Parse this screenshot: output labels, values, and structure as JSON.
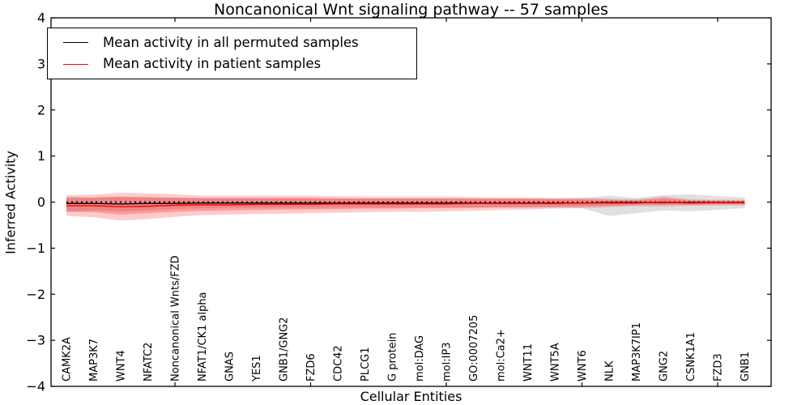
{
  "chart_data": {
    "type": "line",
    "title": "Noncanonical Wnt signaling pathway -- 57 samples",
    "xlabel": "Cellular Entities",
    "ylabel": "Inferred Activity",
    "ylim": [
      -4,
      4
    ],
    "yticks": [
      4,
      3,
      2,
      1,
      0,
      -1,
      -2,
      -3,
      -4
    ],
    "x_tick_mark_indices": [
      4,
      9,
      14,
      19,
      24
    ],
    "grid": false,
    "legend_position": "upper left",
    "zero_reference_line": {
      "y": 0,
      "style": "dotted",
      "color": "#000000"
    },
    "categories": [
      "CAMK2A",
      "MAP3K7",
      "WNT4",
      "NFATC2",
      "Noncanonical Wnts/FZD",
      "NFAT1/CK1 alpha",
      "GNAS",
      "YES1",
      "GNB1/GNG2",
      "FZD6",
      "CDC42",
      "PLCG1",
      "G protein",
      "mol:DAG",
      "mol:IP3",
      "GO:0007205",
      "mol:Ca2+",
      "WNT11",
      "WNT5A",
      "WNT6",
      "NLK",
      "MAP3K7IP1",
      "GNG2",
      "CSNK1A1",
      "FZD3",
      "GNB1"
    ],
    "series": [
      {
        "name": "Mean activity in all permuted samples",
        "color": "#000000",
        "style": "solid",
        "values": [
          -0.03,
          -0.03,
          -0.04,
          -0.03,
          -0.03,
          -0.02,
          -0.02,
          -0.02,
          -0.02,
          -0.02,
          -0.02,
          -0.02,
          -0.02,
          -0.02,
          -0.02,
          -0.02,
          -0.02,
          -0.02,
          -0.02,
          -0.02,
          -0.01,
          -0.01,
          -0.01,
          -0.01,
          -0.01,
          -0.01
        ]
      },
      {
        "name": "Mean activity in patient samples",
        "color": "#ff0000",
        "style": "solid",
        "values": [
          -0.08,
          -0.08,
          -0.1,
          -0.09,
          -0.07,
          -0.06,
          -0.06,
          -0.05,
          -0.05,
          -0.05,
          -0.04,
          -0.04,
          -0.04,
          -0.04,
          -0.04,
          -0.03,
          -0.03,
          -0.03,
          -0.03,
          -0.02,
          -0.02,
          -0.02,
          0.0,
          -0.02,
          -0.01,
          -0.01
        ]
      }
    ],
    "bands": [
      {
        "name": "permuted-samples-range",
        "color": "#999999",
        "opacity": 0.3,
        "upper": [
          0.12,
          0.1,
          0.11,
          0.1,
          0.09,
          0.08,
          0.08,
          0.08,
          0.08,
          0.08,
          0.08,
          0.08,
          0.08,
          0.08,
          0.08,
          0.08,
          0.08,
          0.08,
          0.08,
          0.09,
          0.14,
          0.09,
          0.15,
          0.17,
          0.13,
          0.1
        ],
        "lower": [
          -0.22,
          -0.18,
          -0.2,
          -0.18,
          -0.15,
          -0.13,
          -0.12,
          -0.12,
          -0.12,
          -0.12,
          -0.12,
          -0.12,
          -0.12,
          -0.12,
          -0.12,
          -0.12,
          -0.12,
          -0.12,
          -0.12,
          -0.13,
          -0.3,
          -0.24,
          -0.18,
          -0.2,
          -0.17,
          -0.13
        ]
      },
      {
        "name": "patient-samples-range-outer",
        "color": "#ff0000",
        "opacity": 0.2,
        "upper": [
          0.14,
          0.16,
          0.2,
          0.19,
          0.17,
          0.14,
          0.14,
          0.14,
          0.14,
          0.14,
          0.13,
          0.12,
          0.12,
          0.12,
          0.12,
          0.11,
          0.1,
          0.1,
          0.09,
          0.09,
          0.07,
          0.06,
          0.12,
          0.06,
          0.05,
          0.05
        ],
        "lower": [
          -0.3,
          -0.33,
          -0.4,
          -0.37,
          -0.32,
          -0.28,
          -0.27,
          -0.26,
          -0.25,
          -0.24,
          -0.23,
          -0.22,
          -0.21,
          -0.21,
          -0.2,
          -0.19,
          -0.17,
          -0.16,
          -0.14,
          -0.13,
          -0.11,
          -0.09,
          -0.09,
          -0.08,
          -0.07,
          -0.07
        ]
      },
      {
        "name": "patient-samples-range-inner",
        "color": "#ff0000",
        "opacity": 0.25,
        "upper": [
          0.09,
          0.1,
          0.12,
          0.11,
          0.1,
          0.09,
          0.09,
          0.09,
          0.09,
          0.09,
          0.08,
          0.08,
          0.08,
          0.08,
          0.08,
          0.07,
          0.07,
          0.07,
          0.06,
          0.06,
          0.05,
          0.04,
          0.08,
          0.04,
          0.03,
          0.03
        ],
        "lower": [
          -0.2,
          -0.22,
          -0.27,
          -0.24,
          -0.21,
          -0.19,
          -0.18,
          -0.17,
          -0.16,
          -0.16,
          -0.15,
          -0.14,
          -0.14,
          -0.13,
          -0.13,
          -0.12,
          -0.11,
          -0.11,
          -0.1,
          -0.09,
          -0.08,
          -0.06,
          -0.06,
          -0.06,
          -0.05,
          -0.05
        ]
      }
    ]
  }
}
